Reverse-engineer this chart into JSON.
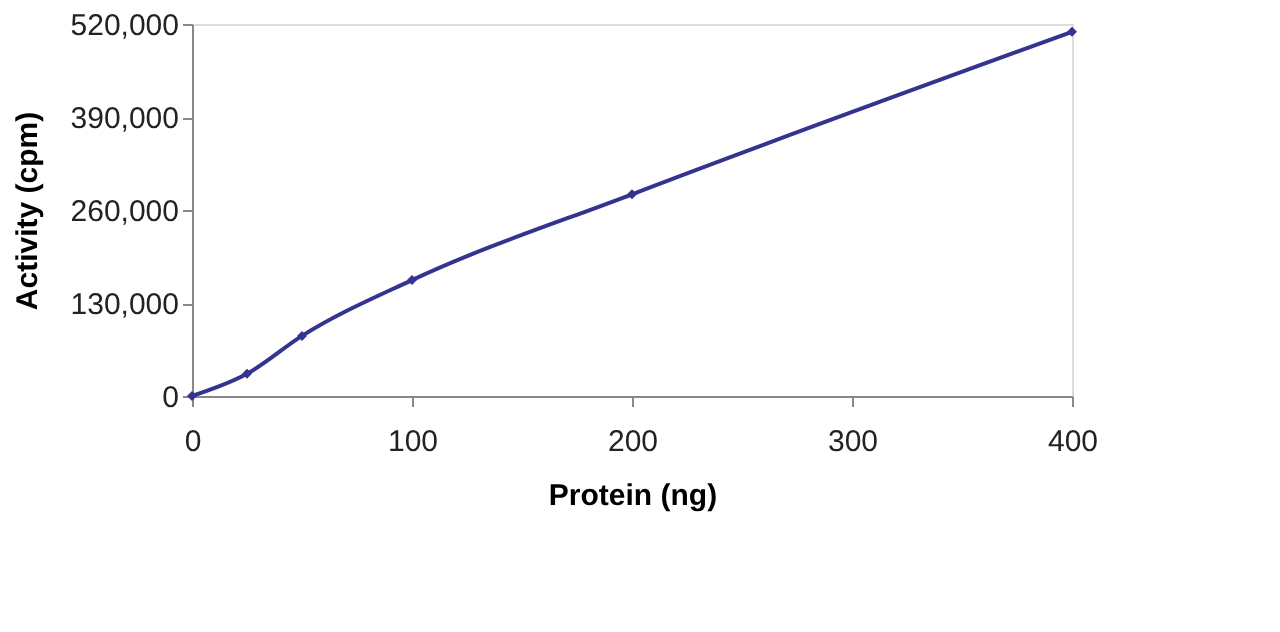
{
  "chart_data": {
    "type": "line",
    "xlabel": "Protein (ng)",
    "ylabel": "Activity (cpm)",
    "x": [
      0,
      25,
      50,
      100,
      200,
      400
    ],
    "series": [
      {
        "color": "#33348f",
        "values": [
          0,
          31000,
          84000,
          162000,
          282000,
          509000
        ]
      }
    ],
    "xlim": [
      0,
      400
    ],
    "xticks": [
      0,
      100,
      200,
      300,
      400
    ],
    "ylim": [
      0,
      520000
    ],
    "yticks": [
      0,
      {
        "value": 130000,
        "label": "130,000"
      },
      {
        "value": 260000,
        "label": "260,000"
      },
      {
        "value": 390000,
        "label": "390,000"
      },
      {
        "value": 520000,
        "label": "520,000"
      }
    ],
    "marker": "diamond",
    "grid": false
  }
}
